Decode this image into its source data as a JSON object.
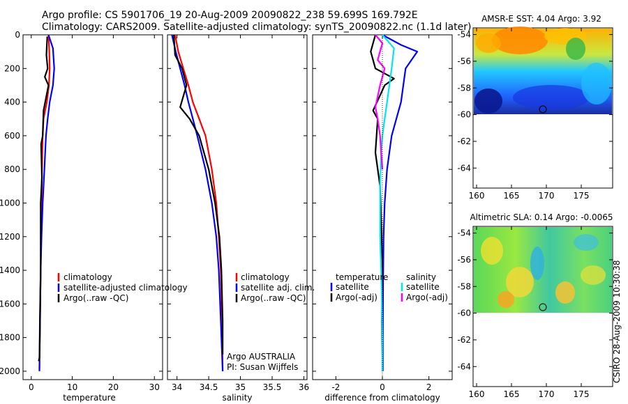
{
  "header": {
    "line1": "Argo profile: CS 5901706_19 20-Aug-2009 20090822_238 59.699S 169.792E",
    "line2": "Climatology: CARS2009. Satellite-adjusted climatology: synTS_20090822.nc (1.1d later)"
  },
  "side_note": "CSIRO 28-Aug-2009 10:30:38",
  "colors": {
    "climatology": "#ff0000",
    "satellite": "#0000ff",
    "argo": "#000000",
    "sat_salinity": "#00e5ee",
    "argo_salinity_adj": "#ff00ff"
  },
  "chart_data": [
    {
      "type": "line",
      "panel": "temperature",
      "xlabel": "temperature",
      "ylabel": "",
      "xlim": [
        -2,
        32
      ],
      "ylim": [
        2050,
        0
      ],
      "xticks": [
        0,
        10,
        20,
        30
      ],
      "yticks": [
        0,
        200,
        400,
        600,
        800,
        1000,
        1200,
        1400,
        1600,
        1800,
        2000
      ],
      "legend": {
        "placement": "lower-center",
        "entries": [
          "climatology",
          "satellite-adjusted climatology",
          "Argo(..raw -QC)"
        ]
      },
      "series": [
        {
          "name": "climatology",
          "color": "#ff0000",
          "x": [
            4.2,
            4.4,
            4.5,
            4.3,
            3.8,
            3.0,
            2.8,
            2.6,
            2.5,
            2.4,
            2.3,
            2.2,
            2.1,
            2.0
          ],
          "y": [
            0,
            100,
            200,
            300,
            400,
            500,
            600,
            800,
            1000,
            1200,
            1400,
            1600,
            1800,
            1990
          ]
        },
        {
          "name": "satellite-adjusted climatology",
          "color": "#0000ff",
          "x": [
            4.2,
            5.3,
            5.6,
            5.3,
            4.5,
            4.0,
            3.6,
            3.2,
            2.8,
            2.5,
            2.3,
            2.1,
            2.0
          ],
          "y": [
            0,
            80,
            200,
            300,
            400,
            500,
            600,
            800,
            1000,
            1200,
            1400,
            1700,
            2000
          ]
        },
        {
          "name": "Argo(..raw -QC)",
          "color": "#000000",
          "x": [
            3.9,
            3.7,
            4.0,
            3.3,
            4.2,
            3.0,
            2.8,
            2.4,
            2.6,
            2.3,
            2.3,
            2.1,
            2.0,
            1.8
          ],
          "y": [
            10,
            120,
            200,
            250,
            300,
            450,
            600,
            650,
            850,
            1000,
            1400,
            1800,
            1920,
            1940
          ]
        }
      ]
    },
    {
      "type": "line",
      "panel": "salinity",
      "xlabel": "salinity",
      "ylabel": "",
      "xlim": [
        33.85,
        36.05
      ],
      "ylim": [
        2050,
        0
      ],
      "xticks": [
        34,
        34.5,
        35,
        35.5,
        36
      ],
      "xtick_labels": [
        "34",
        "34.5",
        "35",
        "35.5",
        "36"
      ],
      "legend": {
        "placement": "lower-center",
        "entries": [
          "climatology",
          "satellite adj. clim.",
          "Argo(..raw -QC)"
        ]
      },
      "annotation": {
        "line1": "Argo AUSTRALIA",
        "line2": "PI: Susan Wijffels"
      },
      "series": [
        {
          "name": "climatology",
          "color": "#ff0000",
          "x": [
            33.97,
            34.02,
            34.1,
            34.18,
            34.25,
            34.35,
            34.45,
            34.55,
            34.62,
            34.66,
            34.69,
            34.71,
            34.72
          ],
          "y": [
            0,
            100,
            200,
            300,
            400,
            500,
            600,
            800,
            1000,
            1200,
            1400,
            1700,
            2000
          ]
        },
        {
          "name": "satellite adj. clim.",
          "color": "#0000ff",
          "x": [
            33.92,
            33.98,
            34.05,
            34.12,
            34.18,
            34.25,
            34.32,
            34.45,
            34.55,
            34.62,
            34.66,
            34.69,
            34.72
          ],
          "y": [
            0,
            100,
            200,
            300,
            400,
            500,
            600,
            800,
            1000,
            1200,
            1400,
            1700,
            2000
          ]
        },
        {
          "name": "Argo(..raw -QC)",
          "color": "#000000",
          "x": [
            33.95,
            33.97,
            34.08,
            34.15,
            34.05,
            34.2,
            34.35,
            34.5,
            34.6,
            34.67,
            34.7,
            34.72,
            34.72
          ],
          "y": [
            0,
            120,
            200,
            300,
            430,
            500,
            600,
            800,
            1000,
            1200,
            1400,
            1700,
            1900
          ]
        }
      ]
    },
    {
      "type": "line",
      "panel": "difference",
      "xlabel": "difference from climatology",
      "ylabel": "",
      "xlim": [
        -3,
        3
      ],
      "ylim": [
        2050,
        0
      ],
      "xticks": [
        -2,
        0,
        2
      ],
      "legend": {
        "placement": "lower-center",
        "headers": [
          "temperature",
          "salinity"
        ],
        "entries": [
          "satellite",
          "Argo(-adj)",
          "satellite",
          "Argo(-adj)"
        ]
      },
      "series": [
        {
          "name": "temperature satellite",
          "color": "#0000ff",
          "x": [
            0.0,
            0.8,
            1.5,
            1.0,
            0.8,
            0.6,
            0.4,
            0.2,
            0.1,
            0.05,
            0.03,
            0.02,
            0.02
          ],
          "y": [
            0,
            60,
            100,
            200,
            400,
            500,
            600,
            800,
            1000,
            1200,
            1500,
            1800,
            2000
          ]
        },
        {
          "name": "temperature Argo(-adj)",
          "color": "#000000",
          "x": [
            -0.3,
            -0.5,
            -0.3,
            0.5,
            0.1,
            -0.4,
            -0.2,
            -0.3,
            -0.1,
            -0.05,
            0.0,
            -0.02,
            0.0
          ],
          "y": [
            0,
            100,
            200,
            260,
            300,
            450,
            500,
            700,
            900,
            1100,
            1400,
            1700,
            1900
          ]
        },
        {
          "name": "salinity satellite",
          "color": "#00e5ee",
          "x": [
            0.0,
            0.5,
            0.4,
            0.2,
            0.1,
            0.0,
            -0.05,
            -0.1,
            -0.1,
            -0.05,
            -0.02,
            0.0,
            0.0
          ],
          "y": [
            0,
            80,
            200,
            400,
            500,
            600,
            700,
            900,
            1200,
            1400,
            1600,
            1800,
            2000
          ]
        },
        {
          "name": "salinity Argo(-adj)",
          "color": "#ff00ff",
          "x": [
            -0.3,
            0.0,
            -0.2,
            0.1,
            -0.1,
            -0.3,
            -0.2,
            -0.1,
            -0.05,
            0.0
          ],
          "y": [
            0,
            50,
            150,
            200,
            300,
            430,
            500,
            600,
            700,
            800
          ]
        }
      ]
    },
    {
      "type": "heatmap",
      "panel": "sst_map",
      "title": "AMSR-E SST: 4.04 Argo: 3.92",
      "xlim": [
        159.5,
        179.5
      ],
      "ylim": [
        -65.5,
        -53.5
      ],
      "xticks": [
        160,
        165,
        170,
        175
      ],
      "yticks": [
        -54,
        -56,
        -58,
        -60,
        -62,
        -64
      ],
      "data_extent": {
        "lat": [
          -60.1,
          -53.5
        ]
      },
      "marker": {
        "lon": 169.79,
        "lat": -59.7
      }
    },
    {
      "type": "heatmap",
      "panel": "sla_map",
      "title": "Altimetric SLA: 0.14 Argo: -0.0065",
      "xlim": [
        159.5,
        179.5
      ],
      "ylim": [
        -65.5,
        -53.5
      ],
      "xticks": [
        160,
        165,
        170,
        175
      ],
      "yticks": [
        -54,
        -56,
        -58,
        -60,
        -62,
        -64
      ],
      "data_extent": {
        "lat": [
          -60.1,
          -53.5
        ]
      },
      "marker": {
        "lon": 169.79,
        "lat": -59.7
      }
    }
  ]
}
